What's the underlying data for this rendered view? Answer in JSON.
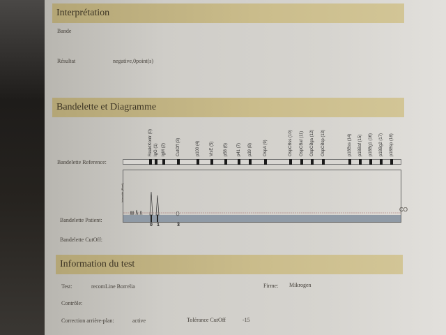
{
  "interpretation": {
    "title": "Interprétation",
    "bande_label": "Bande",
    "resultat_label": "Résultat",
    "resultat_value": "negative,0point(s)"
  },
  "diagram": {
    "title": "Bandelette et Diagramme",
    "reference_label": "Bandelette Reference:",
    "patient_label": "Bandelette Patient:",
    "cutoff_label": "Bandelette CutOff:",
    "y_axis_label": "Intensité (Pixel)",
    "cutoff_marker": "CO",
    "bands": [
      "ReaktKontr (0)",
      "IgG (1)",
      "IgM (2)",
      "CutOff (3)",
      "p100 (4)",
      "VlsE (5)",
      "p58 (6)",
      "p41 (7)",
      "p39 (8)",
      "OspA (9)",
      "OspCBss (10)",
      "OspCBaf (11)",
      "OspCBga (12)",
      "OspCBsp (13)",
      "p18Bss (14)",
      "p18Baf (15)",
      "p18Bg1 (16)",
      "p18Bg2 (17)",
      "p18Bsp (18)"
    ],
    "patient_bands_detected": [
      "0",
      "1",
      "3"
    ],
    "strip_color": "#8f9aa6"
  },
  "test_info": {
    "title": "Information du test",
    "test_label": "Test:",
    "test_value": "recomLine Borrelia",
    "firme_label": "Firme:",
    "firme_value": "Mikrogen",
    "controle_label": "Contrôle:",
    "correction_label": "Correction arrière-plan:",
    "correction_value": "active",
    "tolerance_label": "Tolérance CutOff",
    "tolerance_value": "-15"
  }
}
